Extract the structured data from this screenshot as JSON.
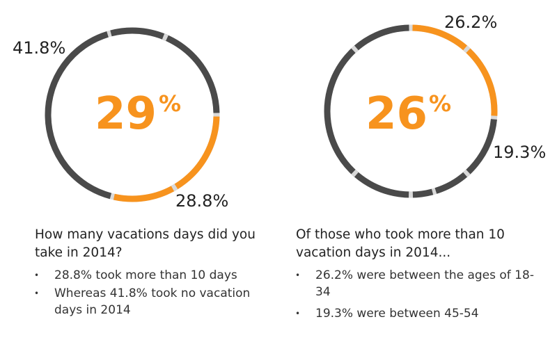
{
  "chart_data": [
    {
      "type": "pie",
      "style": "donut",
      "center_value": "29",
      "center_unit": "%",
      "slices": [
        {
          "name": "took more than 10 days",
          "value": 28.8,
          "color": "#F7931E",
          "label": "28.8%"
        },
        {
          "name": "took no vacation days",
          "value": 41.8,
          "color": "#4A4A4A",
          "label": "41.8%"
        },
        {
          "name": "other",
          "value": 29.4,
          "color": "#4A4A4A",
          "label": ""
        }
      ],
      "title": "How many vacations days did you take in 2014?",
      "bullets": [
        "28.8% took more than 10 days",
        "Whereas 41.8% took no vacation days in 2014"
      ]
    },
    {
      "type": "pie",
      "style": "donut",
      "center_value": "26",
      "center_unit": "%",
      "slices": [
        {
          "name": "ages 18-34",
          "value": 26.2,
          "color": "#F7931E",
          "label": "26.2%"
        },
        {
          "name": "ages 45-54",
          "value": 19.3,
          "color": "#4A4A4A",
          "label": "19.3%"
        },
        {
          "name": "other",
          "value": 54.5,
          "color": "#4A4A4A",
          "label": ""
        }
      ],
      "title": "Of those who took more than 10 vacation days in 2014...",
      "bullets": [
        "26.2% were between the ages of 18-34",
        "19.3% were between 45-54"
      ]
    }
  ],
  "colors": {
    "accent": "#F7931E",
    "dark": "#4A4A4A",
    "gap": "#D9D9D9",
    "text": "#222222"
  }
}
